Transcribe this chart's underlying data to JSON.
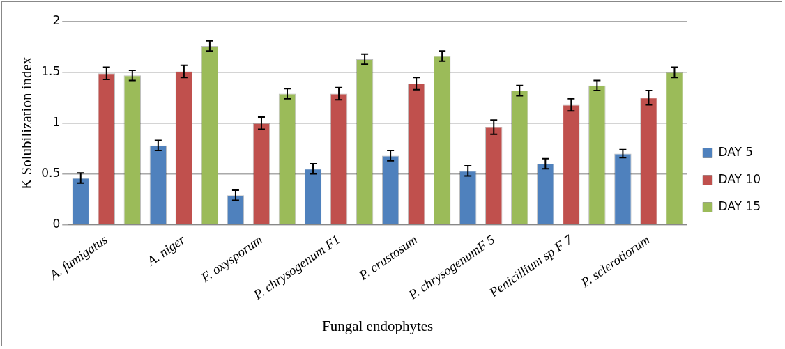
{
  "chart_data": {
    "type": "bar",
    "xlabel": "Fungal endophytes",
    "ylabel": "K Solubilization index",
    "categories": [
      "A. fumigatus",
      "A. niger",
      "F. oxysporum",
      "P. chrysogenum F1",
      "P. crustosum",
      "P. chrysogenumF 5",
      "Penicillium sp F 7",
      "P. sclerotiorum"
    ],
    "series": [
      {
        "name": "DAY 5",
        "color": "#4f81bd",
        "values": [
          0.46,
          0.78,
          0.29,
          0.55,
          0.68,
          0.53,
          0.6,
          0.7
        ],
        "errors": [
          0.05,
          0.05,
          0.05,
          0.05,
          0.05,
          0.05,
          0.05,
          0.04
        ]
      },
      {
        "name": "DAY 10",
        "color": "#c0504d",
        "values": [
          1.49,
          1.51,
          1.0,
          1.29,
          1.39,
          0.96,
          1.18,
          1.25
        ],
        "errors": [
          0.06,
          0.06,
          0.06,
          0.06,
          0.06,
          0.07,
          0.06,
          0.07
        ]
      },
      {
        "name": "DAY 15",
        "color": "#9bbb59",
        "values": [
          1.47,
          1.76,
          1.29,
          1.63,
          1.66,
          1.32,
          1.37,
          1.5
        ],
        "errors": [
          0.05,
          0.05,
          0.05,
          0.05,
          0.05,
          0.05,
          0.05,
          0.05
        ]
      }
    ],
    "ylim": [
      0,
      2
    ],
    "yticks": [
      0,
      0.5,
      1,
      1.5,
      2
    ],
    "grid": "y",
    "legend": "right"
  }
}
